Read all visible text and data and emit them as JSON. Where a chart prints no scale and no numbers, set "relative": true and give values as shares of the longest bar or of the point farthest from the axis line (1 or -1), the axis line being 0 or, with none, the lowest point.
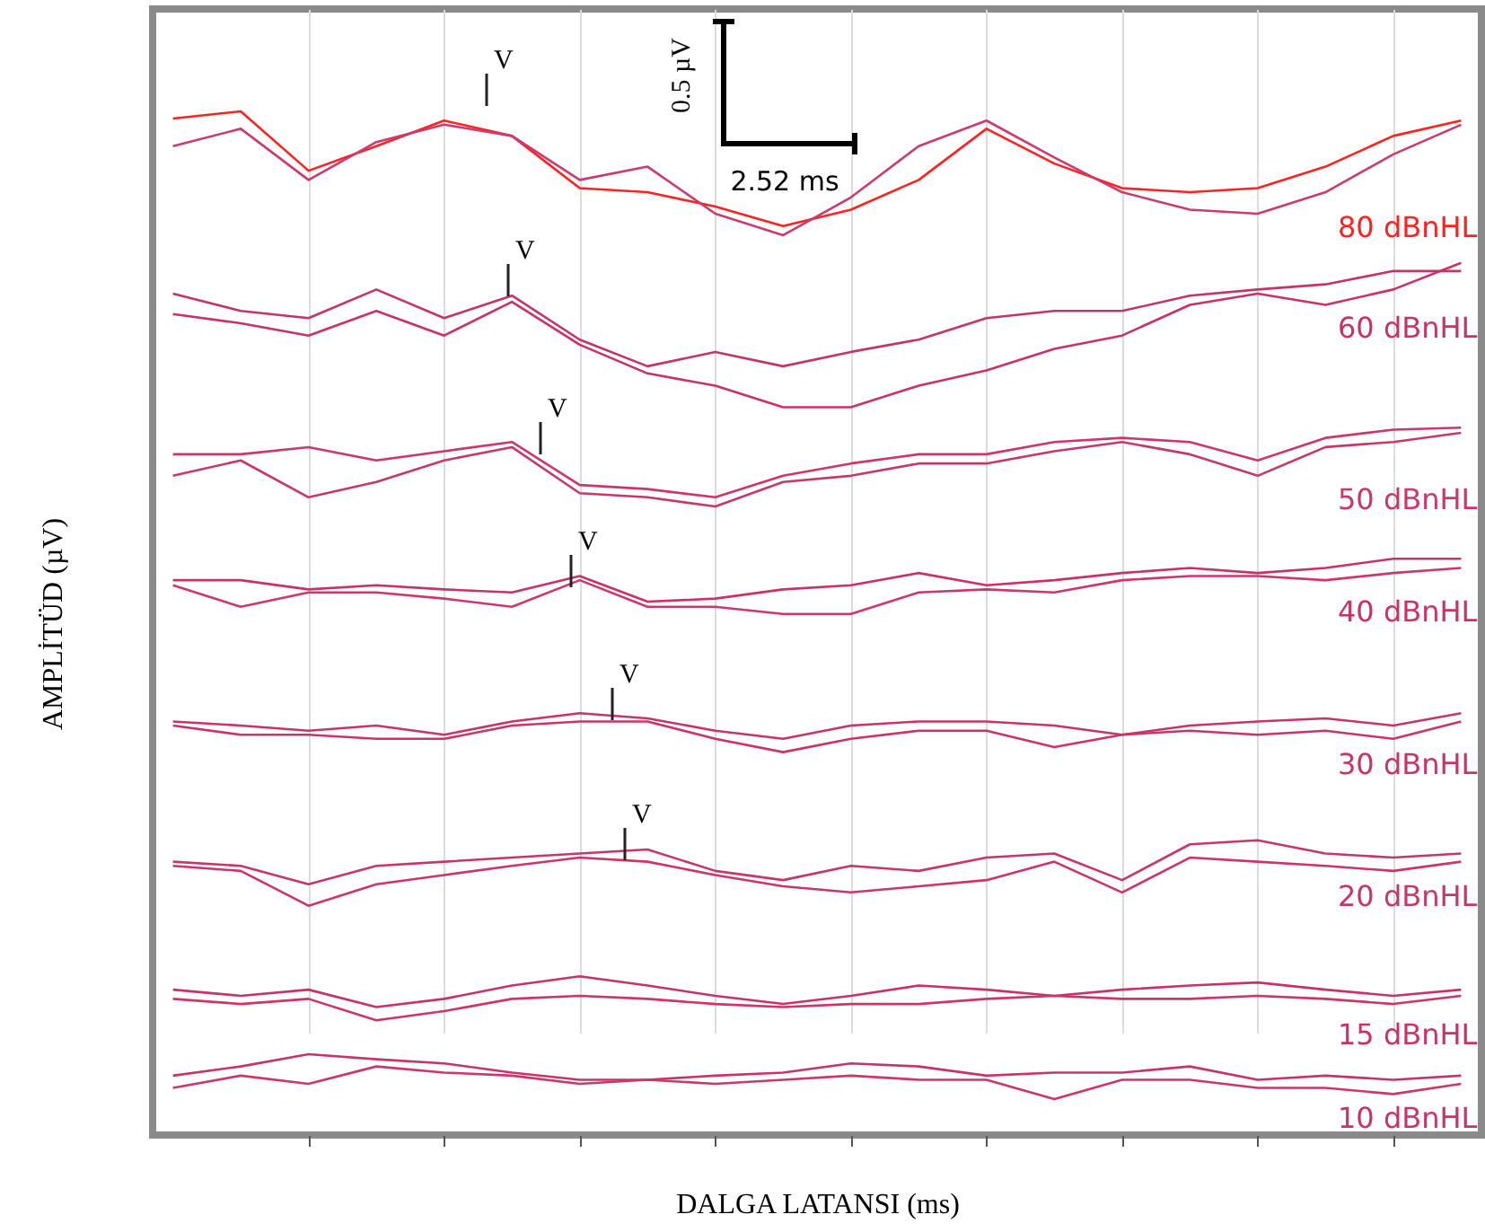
{
  "chart_data": {
    "type": "line",
    "relative": true,
    "xlabel": "DALGA LATANSI (ms)",
    "ylabel": "AMPLİTÜD (µV)",
    "grid": "x",
    "marker": "none",
    "line_style": "solid",
    "categories": [
      null,
      null,
      null,
      null,
      null,
      null,
      null,
      null,
      null,
      null,
      null,
      null,
      null,
      null,
      null,
      null,
      null,
      null,
      null,
      null
    ],
    "series": [
      {
        "name": "80 dBnHL",
        "color": "#ff2020",
        "values": [
          0.993,
          1,
          0.942,
          0.966,
          0.991,
          0.976,
          0.925,
          0.921,
          0.907,
          0.888,
          0.904,
          0.933,
          0.983,
          0.949,
          0.925,
          0.921,
          0.925,
          0.946,
          0.976,
          0.991
        ]
      },
      {
        "color": "#cc3a6e",
        "values": [
          0.966,
          0.983,
          0.933,
          0.97,
          0.987,
          0.976,
          0.933,
          0.946,
          0.9,
          0.879,
          0.916,
          0.966,
          0.991,
          0.955,
          0.921,
          0.904,
          0.9,
          0.921,
          0.958,
          0.987
        ]
      },
      {
        "name": "60 dBnHL",
        "color": "#c83366",
        "values": [
          0.822,
          0.805,
          0.798,
          0.826,
          0.798,
          0.82,
          0.777,
          0.751,
          0.765,
          0.751,
          0.765,
          0.777,
          0.798,
          0.805,
          0.805,
          0.82,
          0.826,
          0.831,
          0.844,
          0.844
        ]
      },
      {
        "color": "#cc3066",
        "values": [
          0.802,
          0.793,
          0.781,
          0.805,
          0.781,
          0.814,
          0.772,
          0.744,
          0.732,
          0.711,
          0.711,
          0.732,
          0.747,
          0.768,
          0.781,
          0.811,
          0.822,
          0.811,
          0.826,
          0.852
        ]
      },
      {
        "name": "50 dBnHL",
        "color": "#d03568",
        "values": [
          0.665,
          0.665,
          0.672,
          0.659,
          0.668,
          0.677,
          0.635,
          0.631,
          0.623,
          0.644,
          0.656,
          0.665,
          0.665,
          0.677,
          0.681,
          0.677,
          0.659,
          0.681,
          0.689,
          0.691
        ]
      },
      {
        "color": "#c93769",
        "values": [
          0.644,
          0.659,
          0.623,
          0.638,
          0.659,
          0.672,
          0.627,
          0.623,
          0.614,
          0.638,
          0.644,
          0.656,
          0.656,
          0.668,
          0.677,
          0.665,
          0.644,
          0.672,
          0.677,
          0.686
        ]
      },
      {
        "name": "40 dBnHL",
        "color": "#cd3163",
        "values": [
          0.542,
          0.542,
          0.533,
          0.537,
          0.533,
          0.53,
          0.546,
          0.521,
          0.524,
          0.533,
          0.537,
          0.549,
          0.537,
          0.542,
          0.549,
          0.554,
          0.549,
          0.554,
          0.563,
          0.563
        ]
      },
      {
        "color": "#d1366a",
        "values": [
          0.537,
          0.516,
          0.53,
          0.53,
          0.524,
          0.516,
          0.542,
          0.516,
          0.516,
          0.509,
          0.509,
          0.53,
          0.533,
          0.53,
          0.542,
          0.546,
          0.546,
          0.542,
          0.549,
          0.554
        ]
      },
      {
        "name": "30 dBnHL",
        "color": "#ca3464",
        "values": [
          0.404,
          0.4,
          0.395,
          0.4,
          0.391,
          0.404,
          0.412,
          0.407,
          0.395,
          0.387,
          0.4,
          0.404,
          0.404,
          0.4,
          0.391,
          0.4,
          0.404,
          0.407,
          0.4,
          0.412
        ]
      },
      {
        "color": "#ce3267",
        "values": [
          0.4,
          0.391,
          0.391,
          0.387,
          0.387,
          0.4,
          0.404,
          0.404,
          0.387,
          0.374,
          0.387,
          0.395,
          0.395,
          0.379,
          0.391,
          0.395,
          0.391,
          0.395,
          0.387,
          0.404
        ]
      },
      {
        "name": "20 dBnHL",
        "color": "#c9356b",
        "values": [
          0.267,
          0.263,
          0.245,
          0.263,
          0.267,
          0.271,
          0.275,
          0.279,
          0.258,
          0.249,
          0.263,
          0.258,
          0.271,
          0.275,
          0.249,
          0.284,
          0.288,
          0.275,
          0.271,
          0.275
        ]
      },
      {
        "color": "#cf3465",
        "values": [
          0.263,
          0.258,
          0.224,
          0.245,
          0.254,
          0.263,
          0.271,
          0.267,
          0.254,
          0.243,
          0.237,
          0.243,
          0.249,
          0.267,
          0.237,
          0.271,
          0.267,
          0.263,
          0.258,
          0.267
        ]
      },
      {
        "name": "15 dBnHL",
        "color": "#cb3169",
        "values": [
          0.142,
          0.136,
          0.142,
          0.125,
          0.133,
          0.146,
          0.155,
          0.146,
          0.136,
          0.128,
          0.136,
          0.146,
          0.142,
          0.136,
          0.142,
          0.146,
          0.149,
          0.142,
          0.136,
          0.142
        ]
      },
      {
        "color": "#d03364",
        "values": [
          0.133,
          0.128,
          0.133,
          0.112,
          0.121,
          0.133,
          0.136,
          0.133,
          0.128,
          0.125,
          0.128,
          0.128,
          0.133,
          0.136,
          0.133,
          0.133,
          0.136,
          0.133,
          0.128,
          0.136
        ]
      },
      {
        "name": "10 dBnHL",
        "color": "#c8346a",
        "values": [
          0.058,
          0.067,
          0.079,
          0.074,
          0.07,
          0.061,
          0.054,
          0.054,
          0.058,
          0.061,
          0.07,
          0.067,
          0.058,
          0.061,
          0.061,
          0.067,
          0.054,
          0.058,
          0.054,
          0.058
        ]
      },
      {
        "color": "#cd3666",
        "values": [
          0.046,
          0.058,
          0.05,
          0.067,
          0.061,
          0.058,
          0.05,
          0.054,
          0.05,
          0.054,
          0.058,
          0.054,
          0.054,
          0.035,
          0.054,
          0.054,
          0.046,
          0.046,
          0.04,
          0.05
        ]
      }
    ],
    "annotations": [
      "0.5 µV",
      "2.52 ms",
      "V",
      "V",
      "V",
      "V",
      "V",
      "V"
    ]
  }
}
